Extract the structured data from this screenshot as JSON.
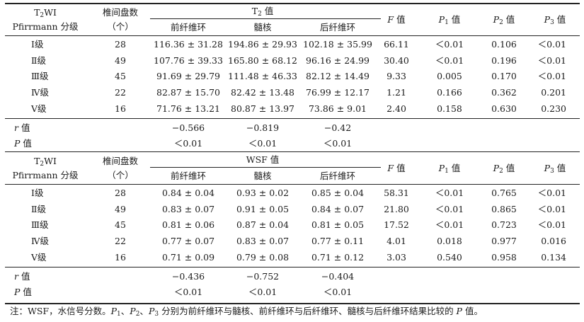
{
  "sections": [
    {
      "id": "t2",
      "header": {
        "col1_line1_pre": "T",
        "col1_line1_sub": "2",
        "col1_line1_post": "WI",
        "col1_line2": "Pfirrmann 分级",
        "col2_line1": "椎间盘数",
        "col2_line2": "（个）",
        "group_pre": "T",
        "group_sub": "2",
        "group_post": " 值",
        "sub1": "前纤维环",
        "sub2": "髓核",
        "sub3": "后纤维环",
        "f_italic": "F",
        "f_post": " 值",
        "p1_italic": "P",
        "p1_sub": "1",
        "p1_post": " 值",
        "p2_italic": "P",
        "p2_sub": "2",
        "p2_post": " 值",
        "p3_italic": "P",
        "p3_sub": "3",
        "p3_post": " 值"
      },
      "rows": [
        {
          "grade": "Ⅰ级",
          "n": "28",
          "af": "116.36 ± 31.28",
          "nuc": "194.86 ± 29.93",
          "pf": "102.18 ± 35.99",
          "f": "66.11",
          "p1": "＜0.01",
          "p2": "0.106",
          "p3": "＜0.01"
        },
        {
          "grade": "Ⅱ级",
          "n": "49",
          "af": "107.76 ± 39.33",
          "nuc": "165.80 ± 68.12",
          "pf": "96.16 ± 24.99",
          "f": "30.40",
          "p1": "＜0.01",
          "p2": "0.196",
          "p3": "＜0.01"
        },
        {
          "grade": "Ⅲ级",
          "n": "45",
          "af": "91.69 ± 29.79",
          "nuc": "111.48 ± 46.33",
          "pf": "82.12 ± 14.49",
          "f": "9.33",
          "p1": "0.005",
          "p2": "0.170",
          "p3": "＜0.01"
        },
        {
          "grade": "Ⅳ级",
          "n": "22",
          "af": "82.87 ± 15.70",
          "nuc": "82.42 ± 13.48",
          "pf": "76.99 ± 12.17",
          "f": "1.21",
          "p1": "0.166",
          "p2": "0.362",
          "p3": "0.201"
        },
        {
          "grade": "Ⅴ级",
          "n": "16",
          "af": "71.76 ± 13.21",
          "nuc": "80.87 ± 13.97",
          "pf": "73.86 ± 9.01",
          "f": "2.40",
          "p1": "0.158",
          "p2": "0.630",
          "p3": "0.230"
        }
      ],
      "r_label_italic": "r",
      "r_label_post": " 值",
      "r_values": [
        "−0.566",
        "−0.819",
        "−0.42"
      ],
      "p_label_italic": "P",
      "p_label_post": " 值",
      "p_values": [
        "＜0.01",
        "＜0.01",
        "＜0.01"
      ]
    },
    {
      "id": "wsf",
      "header": {
        "col1_line1_pre": "T",
        "col1_line1_sub": "2",
        "col1_line1_post": "WI",
        "col1_line2": "Pfirrmann 分级",
        "col2_line1": "椎间盘数",
        "col2_line2": "（个）",
        "group_pre": "WSF 值",
        "group_sub": "",
        "group_post": "",
        "sub1": "前纤维环",
        "sub2": "髓核",
        "sub3": "后纤维环",
        "f_italic": "F",
        "f_post": " 值",
        "p1_italic": "P",
        "p1_sub": "1",
        "p1_post": " 值",
        "p2_italic": "P",
        "p2_sub": "2",
        "p2_post": " 值",
        "p3_italic": "P",
        "p3_sub": "3",
        "p3_post": " 值"
      },
      "rows": [
        {
          "grade": "Ⅰ级",
          "n": "28",
          "af": "0.84 ± 0.04",
          "nuc": "0.93 ± 0.02",
          "pf": "0.85 ± 0.04",
          "f": "58.31",
          "p1": "＜0.01",
          "p2": "0.765",
          "p3": "＜0.01"
        },
        {
          "grade": "Ⅱ级",
          "n": "49",
          "af": "0.83 ± 0.07",
          "nuc": "0.91 ± 0.05",
          "pf": "0.84 ± 0.07",
          "f": "21.80",
          "p1": "＜0.01",
          "p2": "0.865",
          "p3": "＜0.01"
        },
        {
          "grade": "Ⅲ级",
          "n": "45",
          "af": "0.81 ± 0.06",
          "nuc": "0.87 ± 0.04",
          "pf": "0.81 ± 0.05",
          "f": "17.52",
          "p1": "＜0.01",
          "p2": "0.723",
          "p3": "＜0.01"
        },
        {
          "grade": "Ⅳ级",
          "n": "22",
          "af": "0.77 ± 0.07",
          "nuc": "0.83 ± 0.07",
          "pf": "0.77 ± 0.11",
          "f": "4.01",
          "p1": "0.018",
          "p2": "0.977",
          "p3": "0.016"
        },
        {
          "grade": "Ⅴ级",
          "n": "16",
          "af": "0.71 ± 0.09",
          "nuc": "0.79 ± 0.08",
          "pf": "0.71 ± 0.12",
          "f": "3.03",
          "p1": "0.540",
          "p2": "0.958",
          "p3": "0.134"
        }
      ],
      "r_label_italic": "r",
      "r_label_post": " 值",
      "r_values": [
        "−0.436",
        "−0.752",
        "−0.404"
      ],
      "p_label_italic": "P",
      "p_label_post": " 值",
      "p_values": [
        "＜0.01",
        "＜0.01",
        "＜0.01"
      ]
    }
  ],
  "note": {
    "prefix": "注：WSF，水信号分数。",
    "p1": "P",
    "p1_sub": "1",
    "sep1": "、",
    "p2": "P",
    "p2_sub": "2",
    "sep2": "、",
    "p3": "P",
    "p3_sub": "3",
    "body": " 分别为前纤维环与髓核、前纤维环与后纤维环、髓核与后纤维环结果比较的 ",
    "p_end": "P",
    "suffix": " 值。"
  }
}
